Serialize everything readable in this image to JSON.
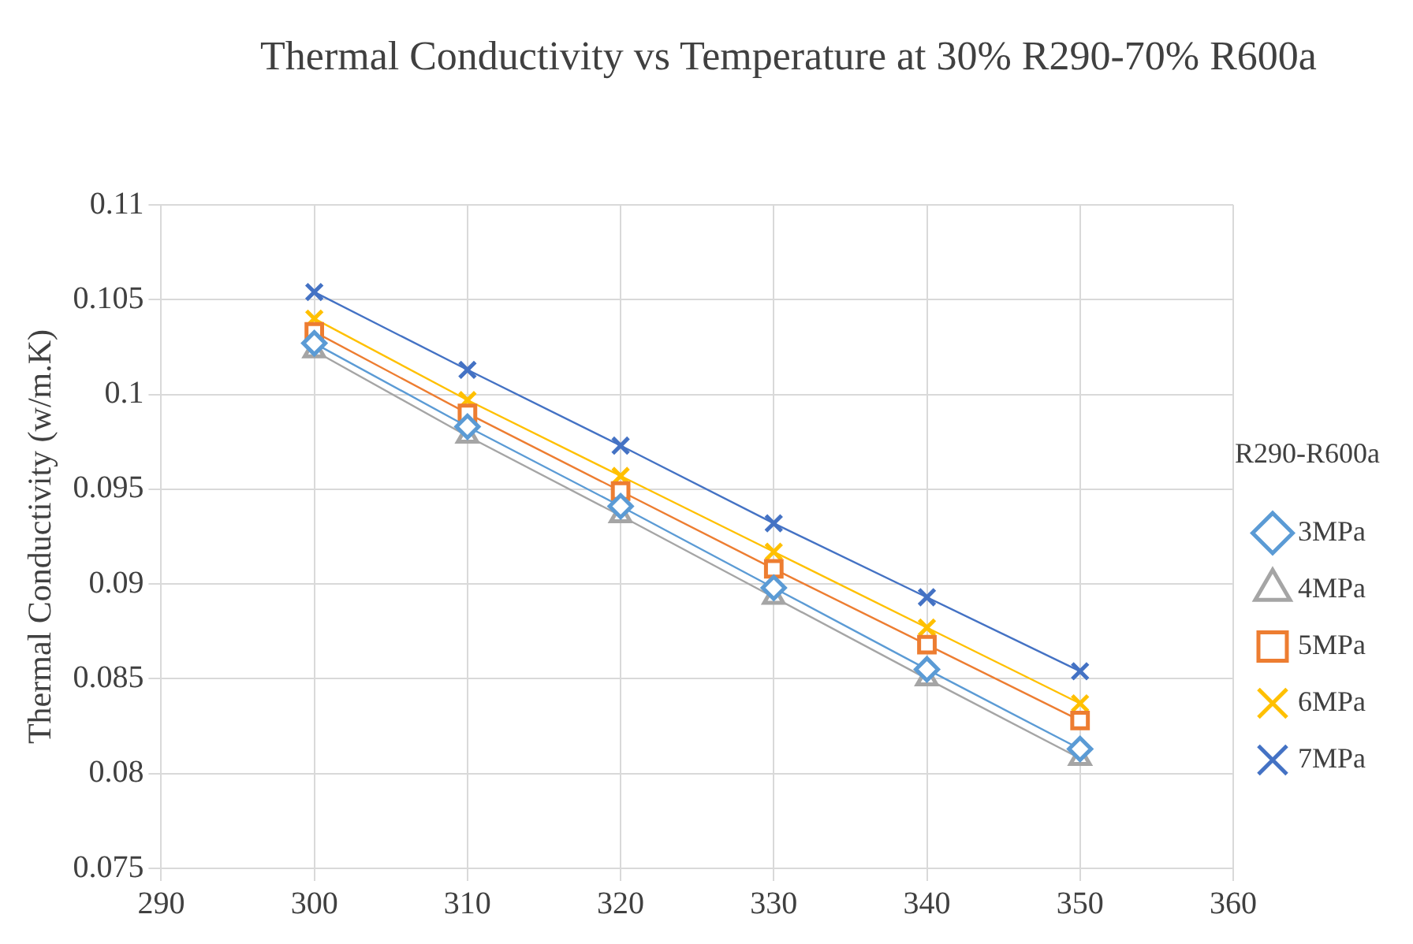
{
  "chart_data": {
    "type": "line",
    "title": "Thermal Conductivity vs Temperature at 30% R290-70% R600a",
    "ylabel": "Thermal Conductivity (w/m.K)",
    "legend_title": "R290-R600a",
    "x": [
      300,
      310,
      320,
      330,
      340,
      350
    ],
    "series": [
      {
        "name": "3MPa",
        "color": "#5b9bd5",
        "marker": "diamond",
        "values": [
          0.1027,
          0.0983,
          0.0941,
          0.0898,
          0.0855,
          0.0813
        ]
      },
      {
        "name": "4MPa",
        "color": "#a5a5a5",
        "marker": "triangle",
        "values": [
          0.1023,
          0.0978,
          0.0936,
          0.0893,
          0.085,
          0.0808
        ]
      },
      {
        "name": "5MPa",
        "color": "#ed7d31",
        "marker": "square",
        "values": [
          0.1033,
          0.099,
          0.0949,
          0.0908,
          0.0868,
          0.0828
        ]
      },
      {
        "name": "6MPa",
        "color": "#ffc000",
        "marker": "cross",
        "values": [
          0.104,
          0.0997,
          0.0957,
          0.0917,
          0.0877,
          0.0837
        ]
      },
      {
        "name": "7MPa",
        "color": "#4472c4",
        "marker": "cross",
        "values": [
          0.1054,
          0.1013,
          0.0973,
          0.0932,
          0.0893,
          0.0854
        ]
      }
    ],
    "xlim": [
      290,
      360
    ],
    "xticks": [
      290,
      300,
      310,
      320,
      330,
      340,
      350,
      360
    ],
    "ylim": [
      0.075,
      0.11
    ],
    "yticks": [
      0.075,
      0.08,
      0.085,
      0.09,
      0.095,
      0.1,
      0.105,
      0.11
    ],
    "grid": true,
    "legend": "right",
    "line_style": "solid"
  }
}
